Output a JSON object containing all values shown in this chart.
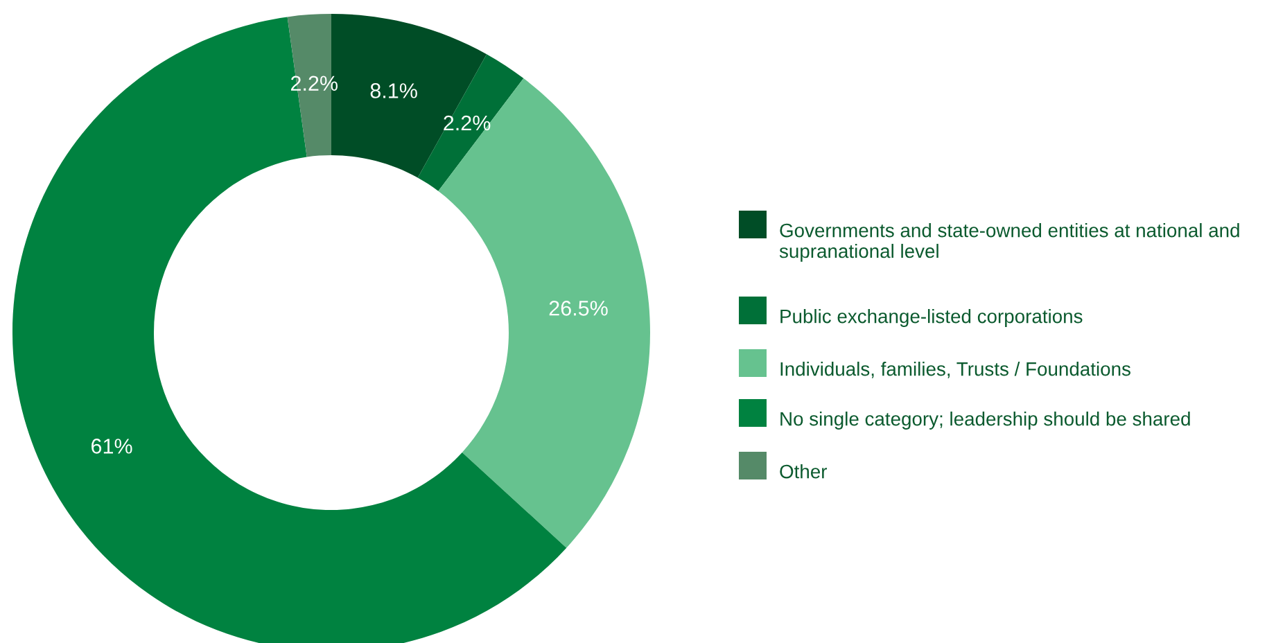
{
  "chart_data": {
    "type": "donut",
    "categories": [
      "Governments and state-owned entities at national and supranational level",
      "Public exchange-listed corporations",
      "Individuals, families, Trusts / Foundations",
      "No single category; leadership should be shared",
      "Other"
    ],
    "values": [
      8.1,
      2.2,
      26.5,
      61,
      2.2
    ],
    "value_labels": [
      "8.1%",
      "2.2%",
      "26.5%",
      "61%",
      "2.2%"
    ],
    "colors": [
      "#004d26",
      "#007038",
      "#66c28f",
      "#008240",
      "#558a68"
    ],
    "legend": "right"
  }
}
